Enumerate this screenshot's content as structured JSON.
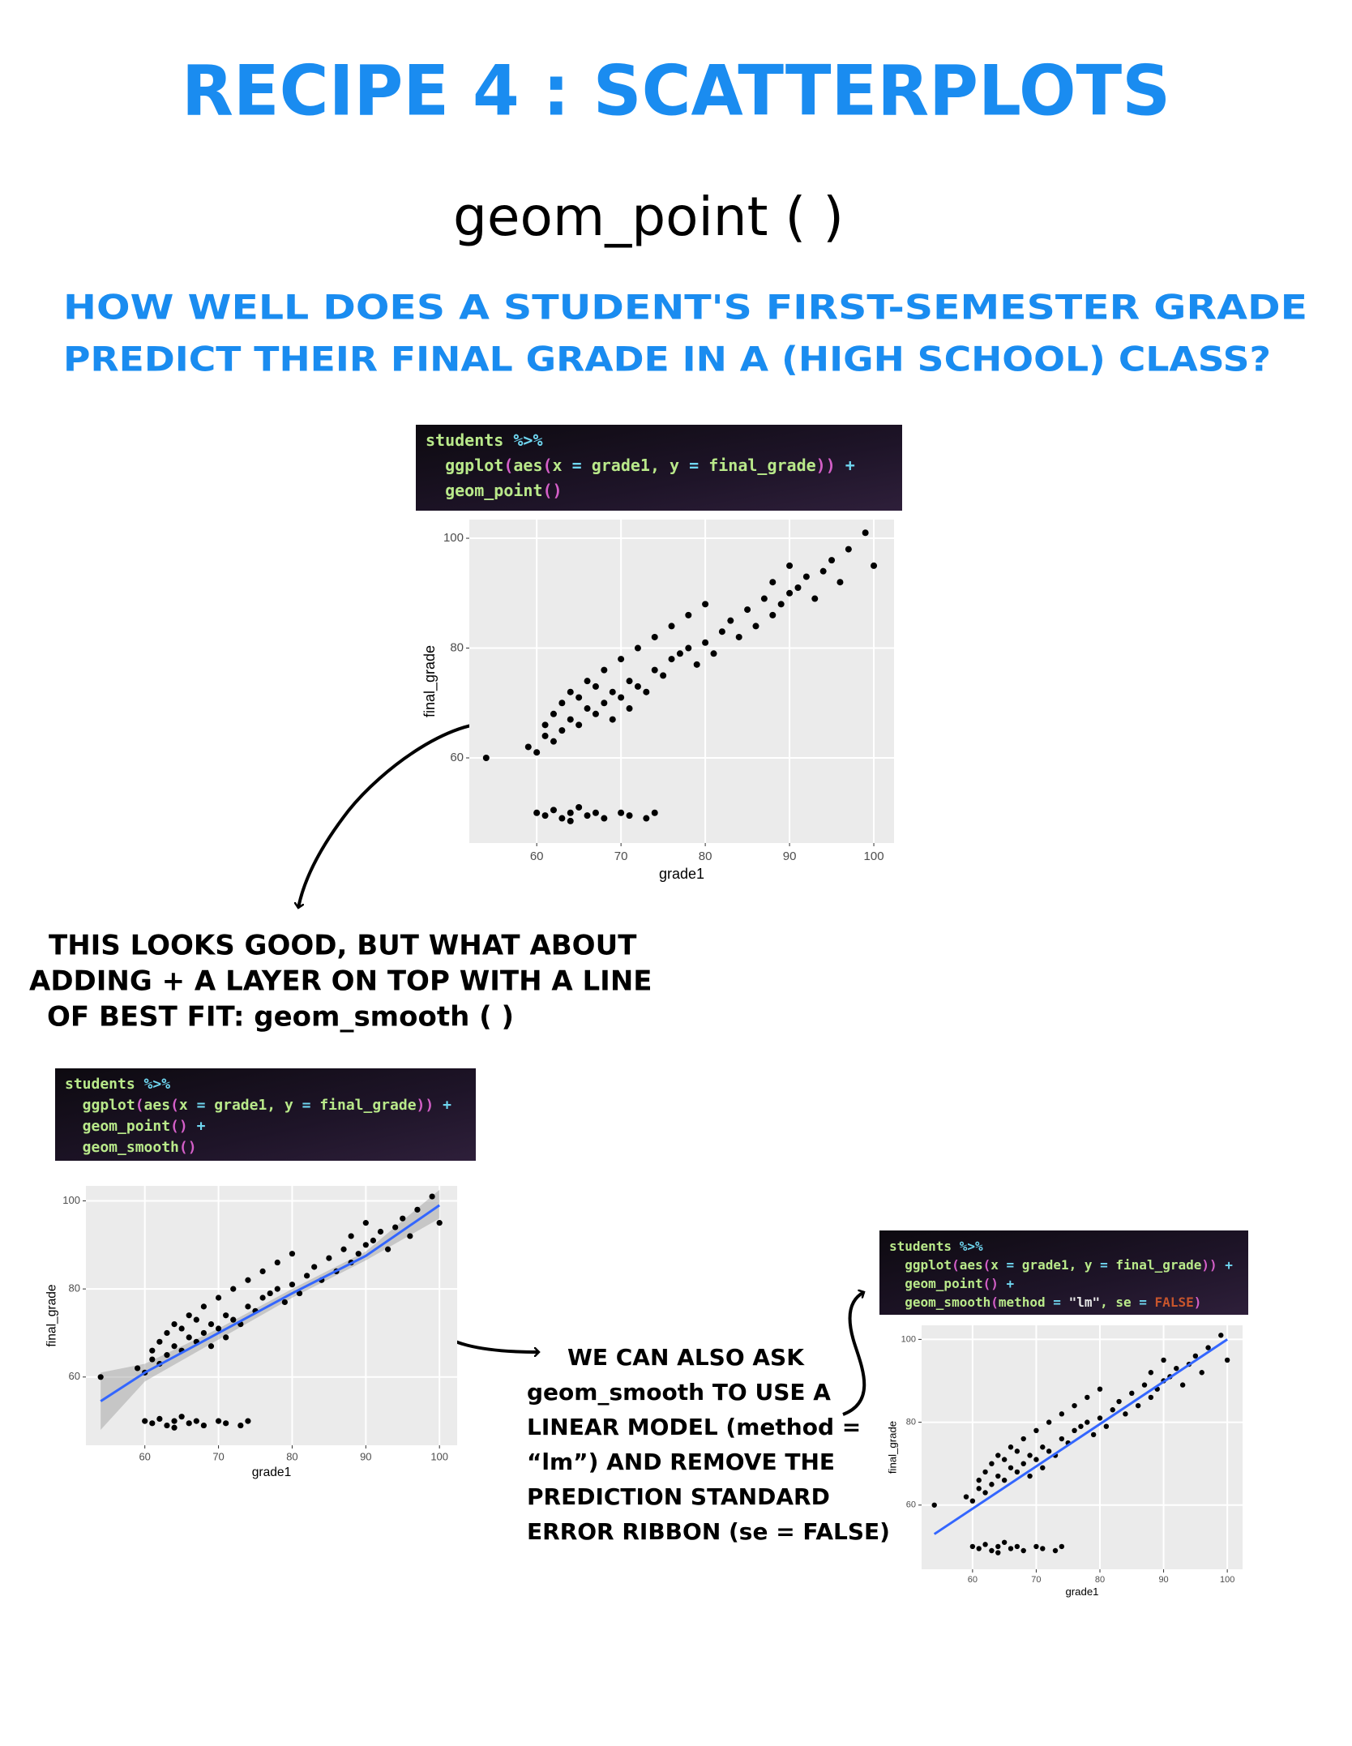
{
  "header": {
    "title": "RECIPE 4 : SCATTERPLOTS",
    "subtitle": "geom_point ( )",
    "question": [
      "HOW WELL DOES A STUDENT'S FIRST-SEMESTER GRADE",
      "PREDICT THEIR FINAL GRADE IN A (HIGH SCHOOL) CLASS?"
    ]
  },
  "notes": [
    [
      "THIS LOOKS GOOD, BUT WHAT ABOUT",
      "ADDING + A LAYER ON TOP WITH A LINE",
      "OF BEST FIT: geom_smooth ( )"
    ],
    [
      "WE CAN ALSO ASK",
      "geom_smooth TO USE A",
      "LINEAR MODEL (method =",
      "“lm”) AND REMOVE THE",
      "PREDICTION STANDARD",
      "ERROR RIBBON (se = FALSE)"
    ]
  ],
  "code_palette": {
    "g": "#b9e98a",
    "c": "#6fd6f0",
    "m": "#d45fc8",
    "w": "#e8e8e8",
    "o": "#c8552c"
  },
  "code_blocks": [
    {
      "lines": [
        [
          [
            "students",
            "g"
          ],
          [
            " %>%",
            "c"
          ]
        ],
        [
          [
            "  ggplot",
            "g"
          ],
          [
            "(",
            "m"
          ],
          [
            "aes",
            "g"
          ],
          [
            "(",
            "m"
          ],
          [
            "x",
            "g"
          ],
          [
            " = ",
            "c"
          ],
          [
            "grade1, y",
            "g"
          ],
          [
            " = ",
            "c"
          ],
          [
            "final_grade",
            "g"
          ],
          [
            "))",
            "m"
          ],
          [
            " +",
            "c"
          ]
        ],
        [
          [
            "  geom_point",
            "g"
          ],
          [
            "()",
            "m"
          ]
        ]
      ]
    },
    {
      "lines": [
        [
          [
            "students",
            "g"
          ],
          [
            " %>%",
            "c"
          ]
        ],
        [
          [
            "  ggplot",
            "g"
          ],
          [
            "(",
            "m"
          ],
          [
            "aes",
            "g"
          ],
          [
            "(",
            "m"
          ],
          [
            "x",
            "g"
          ],
          [
            " = ",
            "c"
          ],
          [
            "grade1, y",
            "g"
          ],
          [
            " = ",
            "c"
          ],
          [
            "final_grade",
            "g"
          ],
          [
            "))",
            "m"
          ],
          [
            " +",
            "c"
          ]
        ],
        [
          [
            "  geom_point",
            "g"
          ],
          [
            "()",
            "m"
          ],
          [
            " +",
            "c"
          ]
        ],
        [
          [
            "  geom_smooth",
            "g"
          ],
          [
            "()",
            "m"
          ]
        ]
      ]
    },
    {
      "lines": [
        [
          [
            "students",
            "g"
          ],
          [
            " %>%",
            "c"
          ]
        ],
        [
          [
            "  ggplot",
            "g"
          ],
          [
            "(",
            "m"
          ],
          [
            "aes",
            "g"
          ],
          [
            "(",
            "m"
          ],
          [
            "x",
            "g"
          ],
          [
            " = ",
            "c"
          ],
          [
            "grade1, y",
            "g"
          ],
          [
            " = ",
            "c"
          ],
          [
            "final_grade",
            "g"
          ],
          [
            "))",
            "m"
          ],
          [
            " +",
            "c"
          ]
        ],
        [
          [
            "  geom_point",
            "g"
          ],
          [
            "()",
            "m"
          ],
          [
            " +",
            "c"
          ]
        ],
        [
          [
            "  geom_smooth",
            "g"
          ],
          [
            "(",
            "m"
          ],
          [
            "method",
            "g"
          ],
          [
            " = ",
            "c"
          ],
          [
            "\"lm\"",
            "w"
          ],
          [
            ", se",
            "g"
          ],
          [
            " = ",
            "c"
          ],
          [
            "FALSE",
            "o"
          ],
          [
            ")",
            "m"
          ]
        ]
      ]
    }
  ],
  "chart_data": [
    {
      "type": "scatter",
      "x_label": "grade1",
      "y_label": "final_grade",
      "grid": true,
      "color": "#000000",
      "panel_color": "#ebebeb",
      "xlim": [
        52,
        102.4
      ],
      "ylim": [
        44.5,
        103.4
      ],
      "xticks": [
        60,
        70,
        80,
        90,
        100
      ],
      "yticks": [
        60,
        80,
        100
      ],
      "x": [
        54,
        59,
        60,
        61,
        61,
        62,
        62,
        63,
        63,
        64,
        64,
        65,
        65,
        66,
        66,
        67,
        67,
        68,
        68,
        69,
        69,
        70,
        70,
        71,
        71,
        72,
        72,
        73,
        74,
        74,
        75,
        76,
        76,
        77,
        78,
        78,
        79,
        80,
        80,
        81,
        82,
        83,
        84,
        85,
        86,
        87,
        88,
        88,
        89,
        90,
        90,
        91,
        92,
        93,
        94,
        95,
        96,
        97,
        99,
        100,
        60,
        61,
        62,
        63,
        64,
        64,
        65,
        66,
        67,
        68,
        70,
        71,
        73,
        74
      ],
      "values": [
        60,
        62,
        61,
        64,
        66,
        63,
        68,
        65,
        70,
        67,
        72,
        66,
        71,
        69,
        74,
        68,
        73,
        70,
        76,
        67,
        72,
        71,
        78,
        69,
        74,
        73,
        80,
        72,
        76,
        82,
        75,
        78,
        84,
        79,
        80,
        86,
        77,
        81,
        88,
        79,
        83,
        85,
        82,
        87,
        84,
        89,
        86,
        92,
        88,
        90,
        95,
        91,
        93,
        89,
        94,
        96,
        92,
        98,
        101,
        95,
        50,
        49.5,
        50.5,
        49,
        50,
        48.5,
        51,
        49.5,
        50,
        49,
        50,
        49.5,
        49,
        50
      ]
    },
    {
      "type": "scatter",
      "x_label": "grade1",
      "y_label": "final_grade",
      "grid": true,
      "color": "#000000",
      "panel_color": "#ebebeb",
      "xlim": [
        52,
        102.4
      ],
      "ylim": [
        44.5,
        103.4
      ],
      "xticks": [
        60,
        70,
        80,
        90,
        100
      ],
      "yticks": [
        60,
        80,
        100
      ],
      "x": [
        54,
        59,
        60,
        61,
        61,
        62,
        62,
        63,
        63,
        64,
        64,
        65,
        65,
        66,
        66,
        67,
        67,
        68,
        68,
        69,
        69,
        70,
        70,
        71,
        71,
        72,
        72,
        73,
        74,
        74,
        75,
        76,
        76,
        77,
        78,
        78,
        79,
        80,
        80,
        81,
        82,
        83,
        84,
        85,
        86,
        87,
        88,
        88,
        89,
        90,
        90,
        91,
        92,
        93,
        94,
        95,
        96,
        97,
        99,
        100,
        60,
        61,
        62,
        63,
        64,
        64,
        65,
        66,
        67,
        68,
        70,
        71,
        73,
        74
      ],
      "values": [
        60,
        62,
        61,
        64,
        66,
        63,
        68,
        65,
        70,
        67,
        72,
        66,
        71,
        69,
        74,
        68,
        73,
        70,
        76,
        67,
        72,
        71,
        78,
        69,
        74,
        73,
        80,
        72,
        76,
        82,
        75,
        78,
        84,
        79,
        80,
        86,
        77,
        81,
        88,
        79,
        83,
        85,
        82,
        87,
        84,
        89,
        86,
        92,
        88,
        90,
        95,
        91,
        93,
        89,
        94,
        96,
        92,
        98,
        101,
        95,
        50,
        49.5,
        50.5,
        49,
        50,
        48.5,
        51,
        49.5,
        50,
        49,
        50,
        49.5,
        49,
        50
      ],
      "fit": {
        "color": "#3366ff",
        "x": [
          54,
          60,
          70,
          80,
          90,
          100
        ],
        "values": [
          54.5,
          61,
          70,
          79,
          87.5,
          99
        ]
      },
      "ribbon": {
        "color": "#999999",
        "x": [
          54,
          60,
          70,
          80,
          90,
          100
        ],
        "lower": [
          48,
          59,
          68.5,
          78,
          86.5,
          96
        ],
        "upper": [
          61,
          63,
          71,
          80,
          88.5,
          102.5
        ]
      }
    },
    {
      "type": "scatter",
      "x_label": "grade1",
      "y_label": "final_grade",
      "grid": true,
      "color": "#000000",
      "panel_color": "#ebebeb",
      "xlim": [
        52,
        102.4
      ],
      "ylim": [
        44.5,
        103.4
      ],
      "xticks": [
        60,
        70,
        80,
        90,
        100
      ],
      "yticks": [
        60,
        80,
        100
      ],
      "x": [
        54,
        59,
        60,
        61,
        61,
        62,
        62,
        63,
        63,
        64,
        64,
        65,
        65,
        66,
        66,
        67,
        67,
        68,
        68,
        69,
        69,
        70,
        70,
        71,
        71,
        72,
        72,
        73,
        74,
        74,
        75,
        76,
        76,
        77,
        78,
        78,
        79,
        80,
        80,
        81,
        82,
        83,
        84,
        85,
        86,
        87,
        88,
        88,
        89,
        90,
        90,
        91,
        92,
        93,
        94,
        95,
        96,
        97,
        99,
        100,
        60,
        61,
        62,
        63,
        64,
        64,
        65,
        66,
        67,
        68,
        70,
        71,
        73,
        74
      ],
      "values": [
        60,
        62,
        61,
        64,
        66,
        63,
        68,
        65,
        70,
        67,
        72,
        66,
        71,
        69,
        74,
        68,
        73,
        70,
        76,
        67,
        72,
        71,
        78,
        69,
        74,
        73,
        80,
        72,
        76,
        82,
        75,
        78,
        84,
        79,
        80,
        86,
        77,
        81,
        88,
        79,
        83,
        85,
        82,
        87,
        84,
        89,
        86,
        92,
        88,
        90,
        95,
        91,
        93,
        89,
        94,
        96,
        92,
        98,
        101,
        95,
        50,
        49.5,
        50.5,
        49,
        50,
        48.5,
        51,
        49.5,
        50,
        49,
        50,
        49.5,
        49,
        50
      ],
      "fit": {
        "color": "#3366ff",
        "x": [
          54,
          100
        ],
        "values": [
          53,
          100
        ]
      }
    }
  ]
}
